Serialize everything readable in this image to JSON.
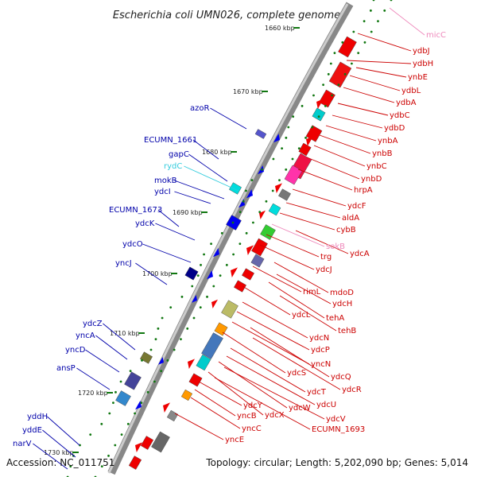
{
  "title": "Escherichia coli UMN026, complete genome",
  "footer": {
    "accession": "Accession: NC_011751",
    "summary": "Topology: circular; Length: 5,202,090 bp; Genes: 5,014"
  },
  "colors": {
    "forward_label": "#cc0000",
    "reverse_label": "#0000aa",
    "rna_forward": "#ee88bb",
    "rna_reverse": "#33ccdd",
    "forward_feature": "#ee0000",
    "reverse_feature": "#0000ee",
    "tick": "#117711"
  },
  "kbp_ticks": [
    "1660 kbp",
    "1670 kbp",
    "1680 kbp",
    "1690 kbp",
    "1700 kbp",
    "1710 kbp",
    "1720 kbp",
    "1730 kbp"
  ],
  "forward_genes": [
    "micC",
    "ydbJ",
    "ydbH",
    "ynbE",
    "ydbL",
    "ydbA",
    "ydbC",
    "ydbD",
    "ynbA",
    "ynbB",
    "ynbC",
    "ynbD",
    "hrpA",
    "ydcF",
    "aldA",
    "cybB",
    "sokB",
    "ydcA",
    "trg",
    "ydcJ",
    "mdoD",
    "rimL",
    "ydcH",
    "tehA",
    "ydcL",
    "tehB",
    "ydcN",
    "ydcP",
    "yncN",
    "ydcS",
    "ydcQ",
    "ydcR",
    "ydcT",
    "ydcU",
    "ydcW",
    "ydcV",
    "ydcX",
    "ECUMN_1693",
    "ydcY",
    "yncB",
    "yncC",
    "yncE"
  ],
  "reverse_genes": [
    "azoR",
    "ECUMN_1661",
    "gapC",
    "rydC",
    "mokB",
    "ydcI",
    "ECUMN_1673",
    "ydcK",
    "ydcO",
    "yncJ",
    "ydcZ",
    "yncA",
    "yncD",
    "ansP",
    "yddH",
    "yddE",
    "narV"
  ]
}
